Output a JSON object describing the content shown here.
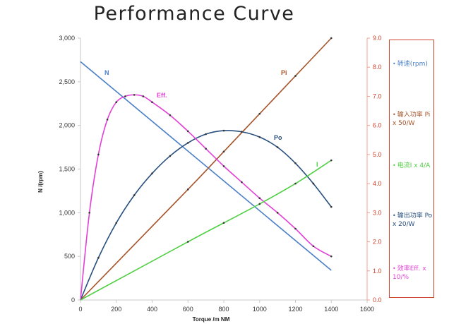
{
  "chart_data": {
    "type": "line",
    "title": "Performance Curve",
    "xlabel": "Torque  /m NM",
    "ylabel": "N /(rpm)",
    "xlim": [
      0,
      1600
    ],
    "ylim": [
      0,
      3000
    ],
    "y2lim": [
      0.0,
      9.0
    ],
    "x_ticks": [
      "0",
      "200",
      "400",
      "600",
      "800",
      "1000",
      "1200",
      "1400",
      "1600"
    ],
    "y_ticks": [
      "0",
      "500",
      "1,000",
      "1,500",
      "2,000",
      "2,500",
      "3,000"
    ],
    "y2_ticks": [
      "0.0",
      "1.0",
      "2.0",
      "3.0",
      "4.0",
      "5.0",
      "6.0",
      "7.0",
      "8.0",
      "9.0"
    ],
    "series": [
      {
        "name": "N",
        "label": "N",
        "axis": "left",
        "color": "#4a7fc8",
        "markers": false,
        "x": [
          0,
          1400
        ],
        "values": [
          2730,
          340
        ]
      },
      {
        "name": "Pi",
        "label": "Pi",
        "axis": "right",
        "color": "#a5542a",
        "markers": true,
        "x": [
          0,
          600,
          800,
          1000,
          1200,
          1400
        ],
        "values": [
          0.0,
          3.8,
          5.1,
          6.4,
          7.7,
          9.0
        ]
      },
      {
        "name": "Po",
        "label": "Po",
        "axis": "right",
        "color": "#284f7d",
        "markers": true,
        "x": [
          0,
          100,
          200,
          300,
          400,
          500,
          600,
          700,
          800,
          900,
          1000,
          1100,
          1200,
          1300,
          1400
        ],
        "values": [
          0.0,
          1.45,
          2.65,
          3.6,
          4.35,
          4.95,
          5.4,
          5.7,
          5.82,
          5.78,
          5.6,
          5.25,
          4.7,
          4.0,
          3.2
        ]
      },
      {
        "name": "Eff.",
        "label": "Eff.",
        "axis": "right",
        "color": "#e23fd6",
        "markers": true,
        "x": [
          0,
          50,
          100,
          150,
          200,
          250,
          300,
          350,
          400,
          500,
          600,
          700,
          800,
          900,
          1000,
          1100,
          1200,
          1300,
          1400
        ],
        "values": [
          0.0,
          3.0,
          5.0,
          6.2,
          6.8,
          7.0,
          7.05,
          7.0,
          6.8,
          6.35,
          5.8,
          5.2,
          4.6,
          4.05,
          3.5,
          3.0,
          2.45,
          1.85,
          1.5
        ]
      },
      {
        "name": "I",
        "label": "I",
        "axis": "right",
        "color": "#4fcf43",
        "markers": true,
        "x": [
          0,
          600,
          800,
          1000,
          1200,
          1400
        ],
        "values": [
          0.0,
          2.0,
          2.65,
          3.3,
          4.0,
          4.8
        ]
      }
    ],
    "legend": {
      "placement": "right",
      "entries": [
        {
          "text": "转速(rpm)",
          "color": "#4a7fc8"
        },
        {
          "text": "输入功率 Pi x 50/W",
          "color": "#a5542a"
        },
        {
          "text": "电流I x 4/A",
          "color": "#4fcf43"
        },
        {
          "text": "输出功率 Po x 20/W",
          "color": "#284f7d"
        },
        {
          "text": "效率Eff. x 10/%",
          "color": "#e23fd6"
        }
      ]
    },
    "grid": false
  }
}
